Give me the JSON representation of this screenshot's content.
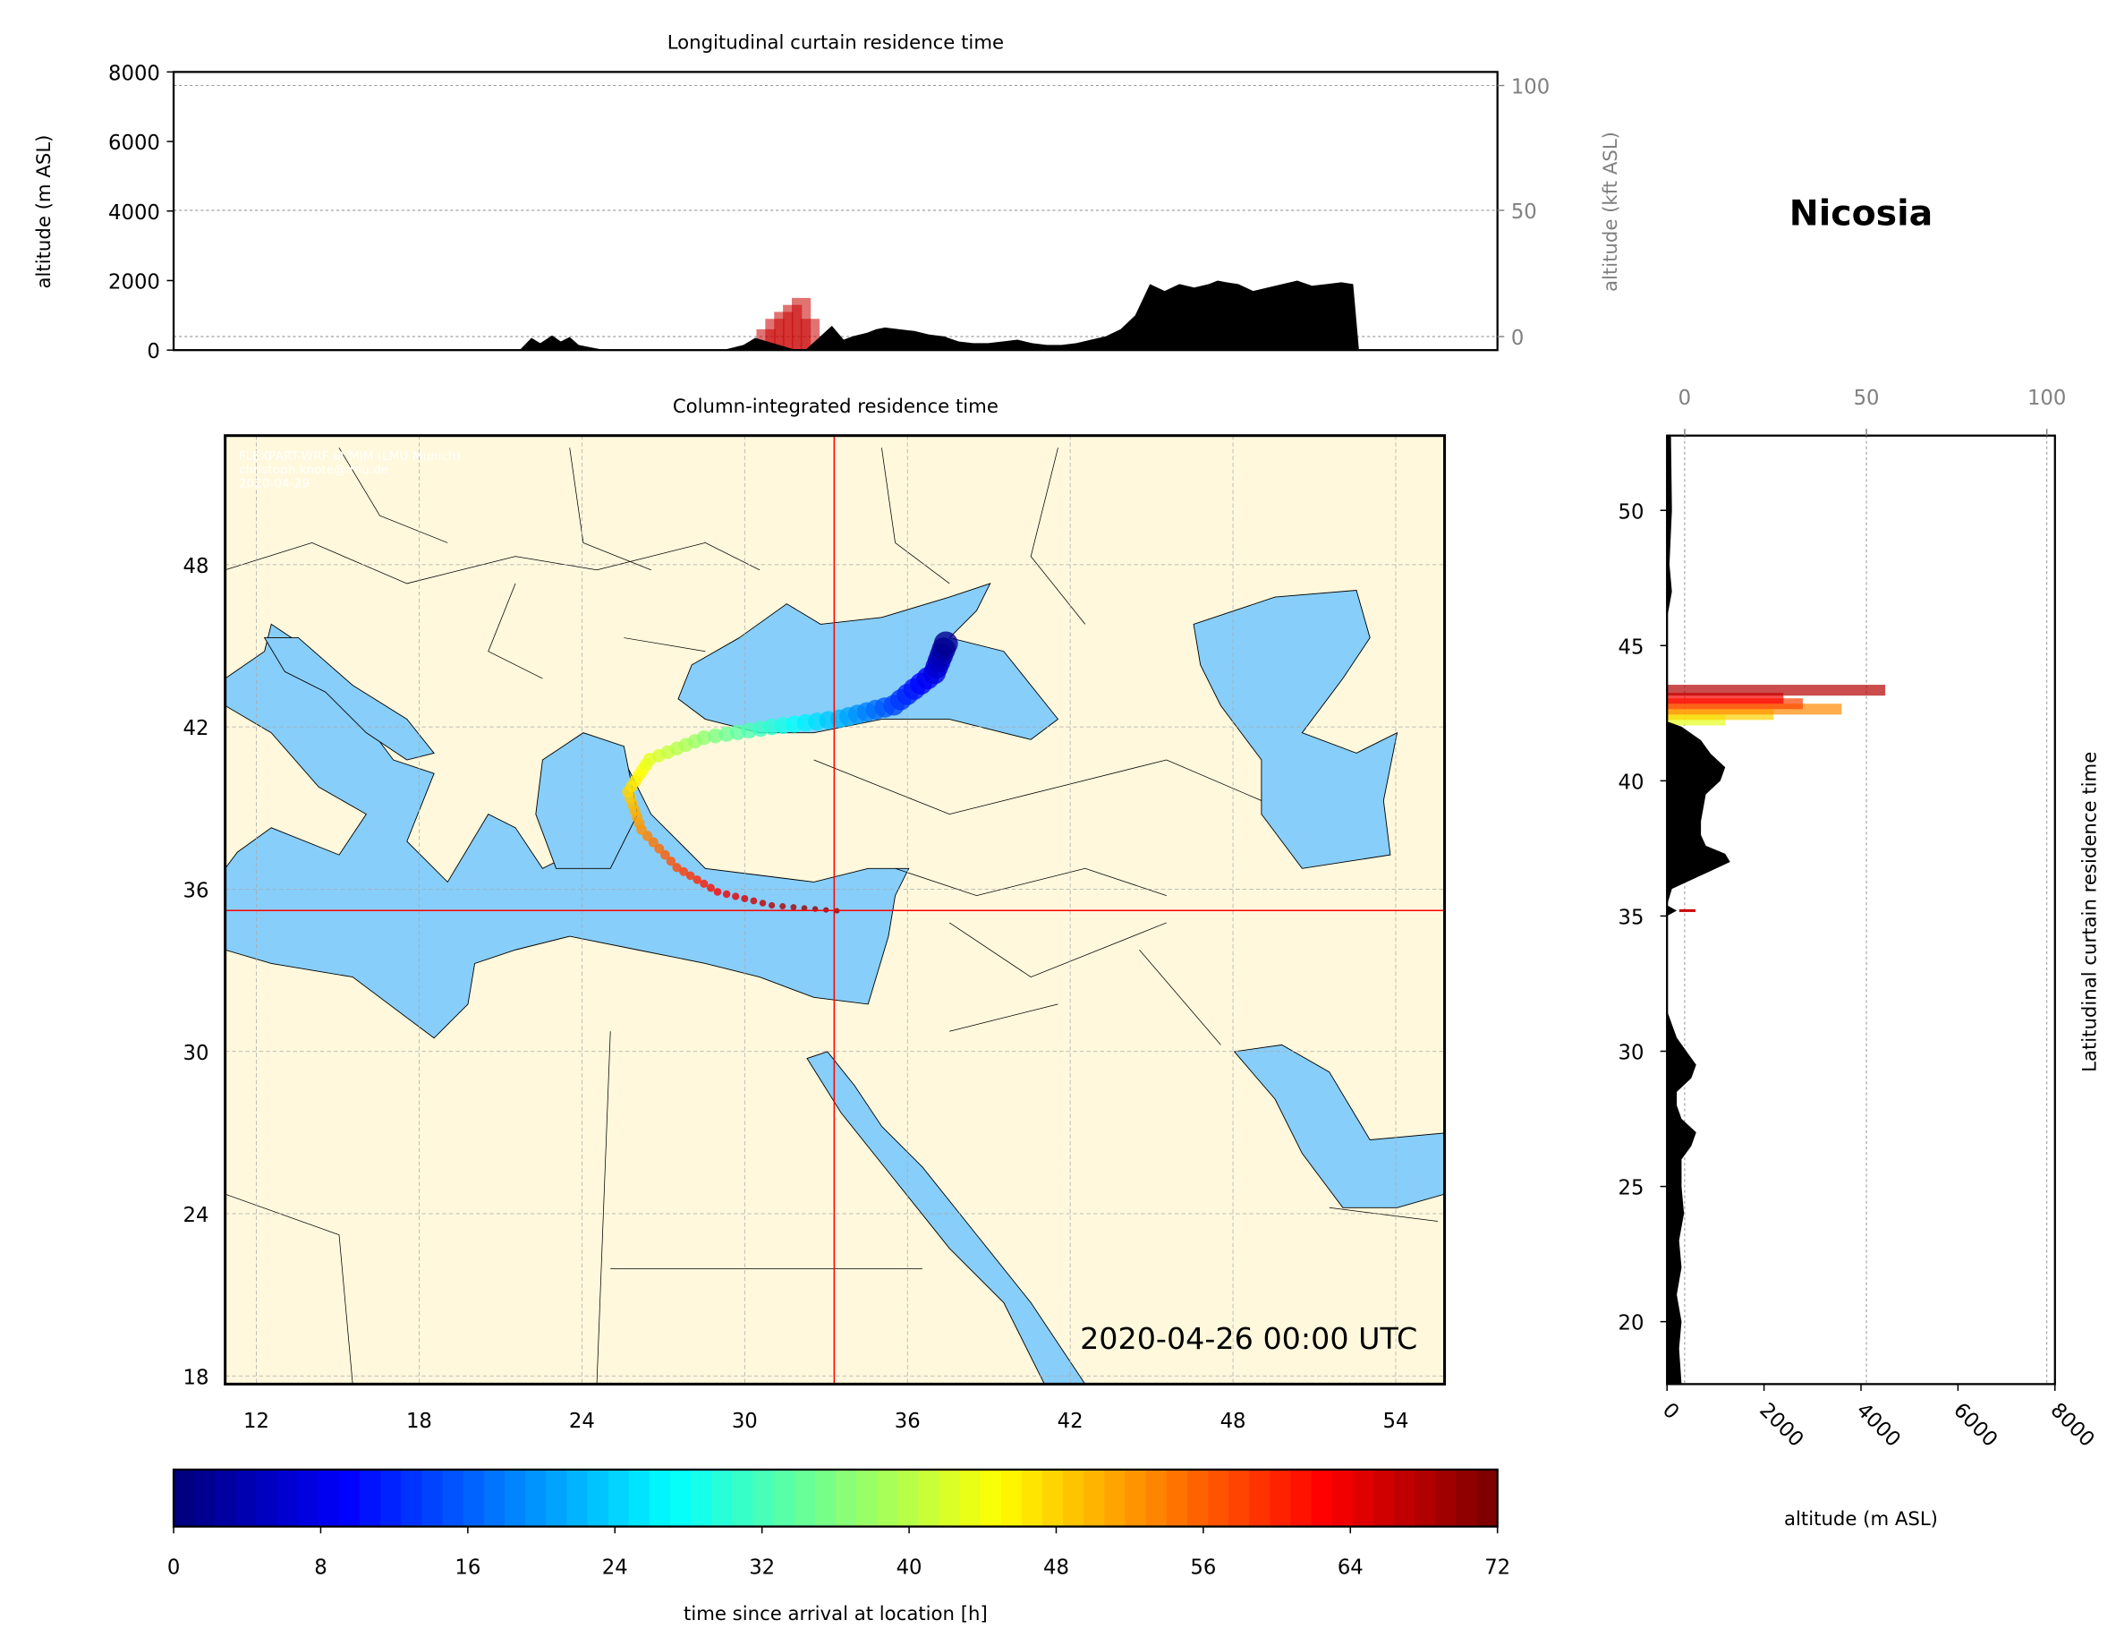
{
  "station": "Nicosia",
  "timestamp": "2020-04-26 00:00 UTC",
  "attribution": [
    "FLEXPART-WRF at MIM (LMU Munich)",
    "christoph.knote@lmu.de",
    "2020-04-29"
  ],
  "colors": {
    "land": "#fff8dc",
    "sea": "#87cefa",
    "terrain": "#000000",
    "crosshair": "#ff0000"
  },
  "chart_data": [
    {
      "type": "area",
      "title": "Longitudinal curtain residence time",
      "ylabel": "altitude (m ASL)",
      "y2label": "altitude (kft ASL)",
      "ylim": [
        0,
        8000
      ],
      "yticks": [
        "0",
        "2000",
        "4000",
        "6000",
        "8000"
      ],
      "y2ticks": [
        "0",
        "50",
        "100"
      ],
      "terrain_lon": [
        22.6,
        23,
        23.3,
        23.7,
        24,
        24.3,
        24.6,
        25,
        25.5,
        29.5,
        30.2,
        30.6,
        31.2,
        32,
        32.3,
        33.2,
        33.6,
        33.9,
        34.4,
        34.7,
        35,
        35.5,
        36,
        36.5,
        37,
        37.5,
        38,
        38.5,
        39,
        39.5,
        40,
        40.5,
        41,
        41.5,
        42,
        42.5,
        43,
        43.5,
        44,
        44.5,
        45,
        45.5,
        46,
        46.3,
        46.6,
        47,
        47.5,
        48,
        48.5,
        49,
        49.5,
        50,
        50.5,
        50.9,
        51.1
      ],
      "terrain_alt": [
        0,
        350,
        200,
        420,
        250,
        380,
        150,
        80,
        0,
        0,
        150,
        350,
        200,
        0,
        0,
        700,
        300,
        400,
        500,
        600,
        650,
        600,
        550,
        450,
        400,
        250,
        200,
        200,
        250,
        300,
        200,
        150,
        150,
        200,
        300,
        400,
        600,
        1000,
        1900,
        1700,
        1900,
        1800,
        1900,
        2000,
        1950,
        1900,
        1700,
        1800,
        1900,
        2000,
        1850,
        1900,
        1950,
        1900,
        0
      ],
      "residence_lon": [
        31.1,
        31.4,
        31.7,
        32.0,
        32.3,
        32.6
      ],
      "residence_alt": [
        600,
        900,
        1100,
        1300,
        1500,
        900
      ]
    },
    {
      "type": "heatmap",
      "title": "Column-integrated residence time",
      "xticks": [
        "12",
        "18",
        "24",
        "30",
        "36",
        "42",
        "48",
        "54"
      ],
      "yticks": [
        "18",
        "24",
        "30",
        "36",
        "42",
        "48"
      ],
      "xlim": [
        10.85,
        55.8
      ],
      "ylim": [
        17.7,
        52.8
      ],
      "location": {
        "lon": 33.4,
        "lat": 35.2
      },
      "trajectory": [
        {
          "lon": 33.4,
          "lat": 35.2,
          "t": 0
        },
        {
          "lon": 31.0,
          "lat": 35.4,
          "t": 4
        },
        {
          "lon": 29.0,
          "lat": 35.9,
          "t": 9
        },
        {
          "lon": 27.5,
          "lat": 36.8,
          "t": 14
        },
        {
          "lon": 26.2,
          "lat": 38.2,
          "t": 19
        },
        {
          "lon": 25.7,
          "lat": 39.6,
          "t": 24
        },
        {
          "lon": 26.5,
          "lat": 40.8,
          "t": 29
        },
        {
          "lon": 28.5,
          "lat": 41.6,
          "t": 35
        },
        {
          "lon": 31.0,
          "lat": 42.0,
          "t": 42
        },
        {
          "lon": 33.5,
          "lat": 42.3,
          "t": 50
        },
        {
          "lon": 35.5,
          "lat": 42.8,
          "t": 58
        },
        {
          "lon": 37.0,
          "lat": 44.0,
          "t": 65
        },
        {
          "lon": 37.5,
          "lat": 45.3,
          "t": 72
        }
      ]
    },
    {
      "type": "area",
      "title": "Latitudinal curtain residence time",
      "xlabel": "altitude (m ASL)",
      "xticks": [
        "0",
        "2000",
        "4000",
        "6000",
        "8000"
      ],
      "x2ticks": [
        "0",
        "50",
        "100"
      ],
      "yticks": [
        "20",
        "25",
        "30",
        "35",
        "40",
        "45",
        "50"
      ],
      "xlim": [
        0,
        8000
      ],
      "terrain_lat": [
        17.7,
        19,
        20,
        21,
        22,
        23,
        24,
        25,
        26,
        26.5,
        27,
        27.5,
        28,
        28.5,
        29,
        29.5,
        30,
        30.5,
        31,
        31.5,
        35,
        35.2,
        35.4,
        36,
        36.5,
        37,
        37.3,
        37.6,
        38,
        38.5,
        39,
        39.5,
        40,
        40.5,
        41,
        41.5,
        42,
        42.2,
        46,
        47,
        48,
        50,
        52.8
      ],
      "terrain_alt": [
        300,
        250,
        300,
        200,
        300,
        250,
        350,
        300,
        300,
        500,
        600,
        300,
        200,
        200,
        500,
        600,
        400,
        200,
        100,
        0,
        0,
        200,
        0,
        100,
        700,
        1300,
        1200,
        800,
        700,
        700,
        750,
        800,
        1100,
        1200,
        900,
        700,
        300,
        0,
        0,
        100,
        50,
        100,
        80
      ],
      "residence_lat": [
        42.2,
        42.4,
        42.6,
        42.8,
        43.0,
        43.3
      ],
      "residence_alt": [
        1200,
        2200,
        3600,
        2800,
        2400,
        4500
      ]
    },
    {
      "type": "colorbar",
      "xlabel": "time since arrival at location [h]",
      "range": [
        0,
        72
      ],
      "ticks": [
        "0",
        "8",
        "16",
        "24",
        "32",
        "40",
        "48",
        "56",
        "64",
        "72"
      ]
    }
  ]
}
